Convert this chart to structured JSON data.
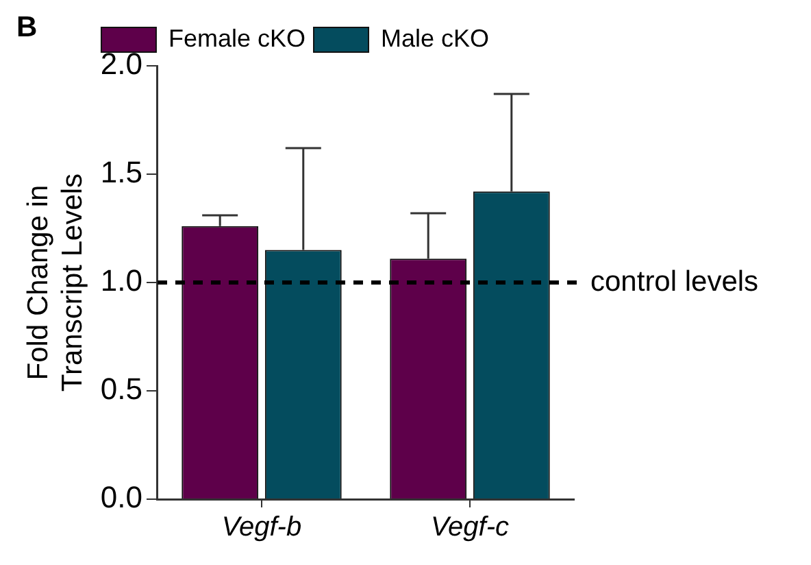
{
  "chart_data": {
    "type": "bar",
    "ylabel": "Fold Change in\nTranscript Levels",
    "categories": [
      "Vegf-b",
      "Vegf-c"
    ],
    "series": [
      {
        "name": "Female cKO",
        "color": "#5e004a",
        "values": [
          1.26,
          1.11
        ],
        "errors": [
          [
            1.26,
            1.31
          ],
          [
            1.11,
            1.32
          ]
        ]
      },
      {
        "name": "Male cKO",
        "color": "#044c5e",
        "values": [
          1.15,
          1.42
        ],
        "errors": [
          [
            1.15,
            1.62
          ],
          [
            1.42,
            1.87
          ]
        ]
      }
    ],
    "ylim": [
      0,
      2
    ],
    "yticks": [
      {
        "value": 0,
        "label": "0.0"
      },
      {
        "value": 0.5,
        "label": "0.5"
      },
      {
        "value": 1,
        "label": "1.0"
      },
      {
        "value": 1.5,
        "label": "1.5"
      },
      {
        "value": 2,
        "label": "2.0"
      }
    ],
    "ref_lines": [
      {
        "axis": "y",
        "value": 1,
        "label": "control levels",
        "color": "#000000",
        "line_style": "dashed"
      }
    ],
    "annotations": [
      "B"
    ],
    "legend": "top",
    "grid": false
  }
}
